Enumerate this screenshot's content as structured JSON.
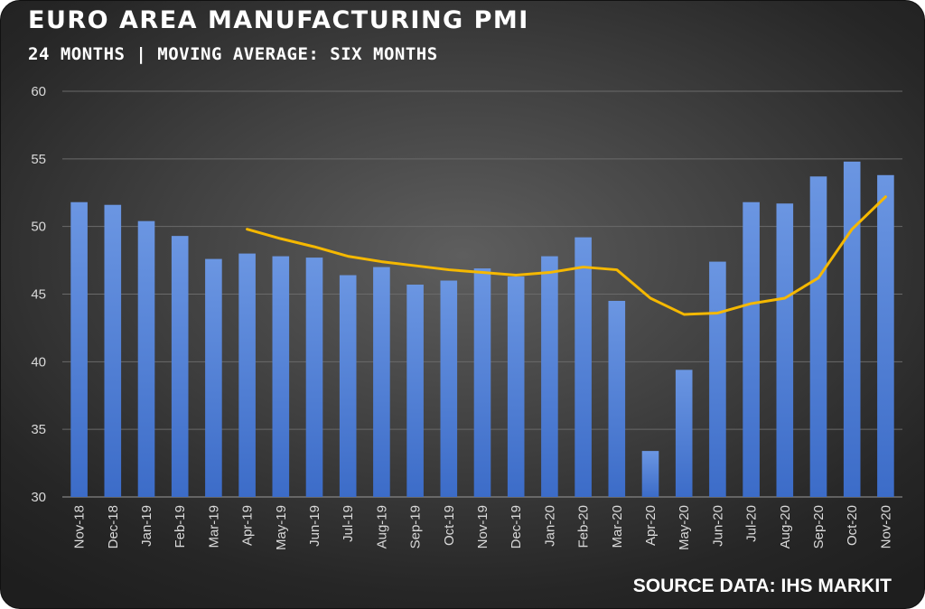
{
  "title": "EURO AREA MANUFACTURING PMI",
  "subtitle": "24 MONTHS | MOVING AVERAGE: SIX MONTHS",
  "source": "SOURCE DATA: IHS MARKIT",
  "colors": {
    "bar": "#4a7bd4",
    "bar_light": "#6a95e0",
    "line": "#f5b800",
    "grid": "#6a6a6a"
  },
  "chart_data": {
    "type": "bar",
    "title": "EURO AREA MANUFACTURING PMI",
    "subtitle": "24 MONTHS | MOVING AVERAGE: SIX MONTHS",
    "categories": [
      "Nov-18",
      "Dec-18",
      "Jan-19",
      "Feb-19",
      "Mar-19",
      "Apr-19",
      "May-19",
      "Jun-19",
      "Jul-19",
      "Aug-19",
      "Sep-19",
      "Oct-19",
      "Nov-19",
      "Dec-19",
      "Jan-20",
      "Feb-20",
      "Mar-20",
      "Apr-20",
      "May-20",
      "Jun-20",
      "Jul-20",
      "Aug-20",
      "Sep-20",
      "Oct-20",
      "Nov-20"
    ],
    "series": [
      {
        "type": "bar",
        "values": [
          51.8,
          51.6,
          50.4,
          49.3,
          47.6,
          48.0,
          47.8,
          47.7,
          46.4,
          47.0,
          45.7,
          46.0,
          46.9,
          46.3,
          47.8,
          49.2,
          44.5,
          33.4,
          39.4,
          47.4,
          51.8,
          51.7,
          53.7,
          54.8,
          53.8
        ]
      },
      {
        "type": "line",
        "values": [
          null,
          null,
          null,
          null,
          null,
          49.8,
          49.1,
          48.5,
          47.8,
          47.4,
          47.1,
          46.8,
          46.6,
          46.4,
          46.6,
          47.0,
          46.8,
          44.7,
          43.5,
          43.6,
          44.3,
          44.7,
          46.2,
          49.8,
          52.2
        ]
      }
    ],
    "yticks": [
      30,
      35,
      40,
      45,
      50,
      55,
      60
    ],
    "ylim": [
      30,
      60
    ],
    "grid": true,
    "legend": "none"
  }
}
